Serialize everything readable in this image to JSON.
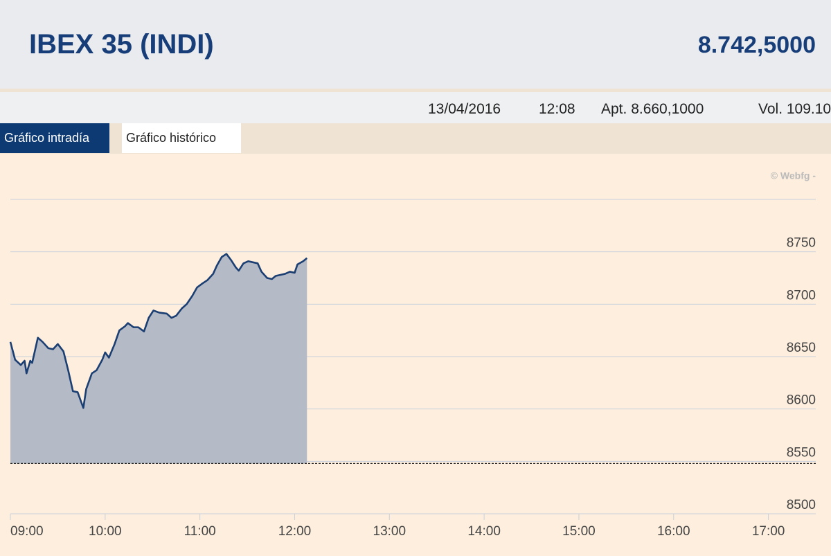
{
  "header": {
    "title": "IBEX 35 (INDI)",
    "value": "8.742,5000"
  },
  "info": {
    "date": "13/04/2016",
    "time": "12:08",
    "open": "Apt. 8.660,1000",
    "volume": "Vol. 109.10"
  },
  "tabs": [
    "Gráfico intradía",
    "Gráfico histórico"
  ],
  "watermark": "© Webfg -",
  "chart_data": {
    "type": "area",
    "x": [
      9.0,
      9.05,
      9.11,
      9.15,
      9.17,
      9.21,
      9.23,
      9.29,
      9.34,
      9.4,
      9.45,
      9.5,
      9.56,
      9.61,
      9.66,
      9.71,
      9.77,
      9.8,
      9.86,
      9.91,
      9.97,
      10.0,
      10.04,
      10.1,
      10.15,
      10.21,
      10.24,
      10.3,
      10.35,
      10.41,
      10.46,
      10.51,
      10.57,
      10.65,
      10.7,
      10.75,
      10.81,
      10.86,
      10.92,
      10.97,
      11.03,
      11.08,
      11.14,
      11.18,
      11.23,
      11.28,
      11.33,
      11.38,
      11.41,
      11.46,
      11.51,
      11.56,
      11.61,
      11.65,
      11.71,
      11.76,
      11.8,
      11.85,
      11.9,
      11.95,
      12.0,
      12.03,
      12.09,
      12.13
    ],
    "values": [
      8664,
      8647,
      8642,
      8646,
      8634,
      8646,
      8644,
      8668,
      8664,
      8658,
      8657,
      8662,
      8655,
      8637,
      8617,
      8616,
      8601,
      8619,
      8634,
      8637,
      8647,
      8654,
      8649,
      8662,
      8675,
      8679,
      8682,
      8678,
      8678,
      8674,
      8687,
      8694,
      8692,
      8691,
      8687,
      8689,
      8696,
      8700,
      8708,
      8716,
      8720,
      8723,
      8729,
      8737,
      8745,
      8748,
      8742,
      8735,
      8732,
      8739,
      8741,
      8740,
      8739,
      8731,
      8725,
      8724,
      8727,
      8728,
      8729,
      8731,
      8730,
      8738,
      8741,
      8744
    ],
    "color": "#1b3f73",
    "reference_line": 8548,
    "xlim": [
      9,
      17.5
    ],
    "xticks": [
      {
        "value": 9,
        "label": "09:00"
      },
      {
        "value": 10,
        "label": "10:00"
      },
      {
        "value": 11,
        "label": "11:00"
      },
      {
        "value": 12,
        "label": "12:00"
      },
      {
        "value": 13,
        "label": "13:00"
      },
      {
        "value": 14,
        "label": "14:00"
      },
      {
        "value": 15,
        "label": "15:00"
      },
      {
        "value": 16,
        "label": "16:00"
      },
      {
        "value": 17,
        "label": "17:00"
      }
    ],
    "ylim": [
      8500,
      8800
    ],
    "yticks": [
      8500,
      8550,
      8600,
      8650,
      8700,
      8750
    ],
    "grid": true
  }
}
